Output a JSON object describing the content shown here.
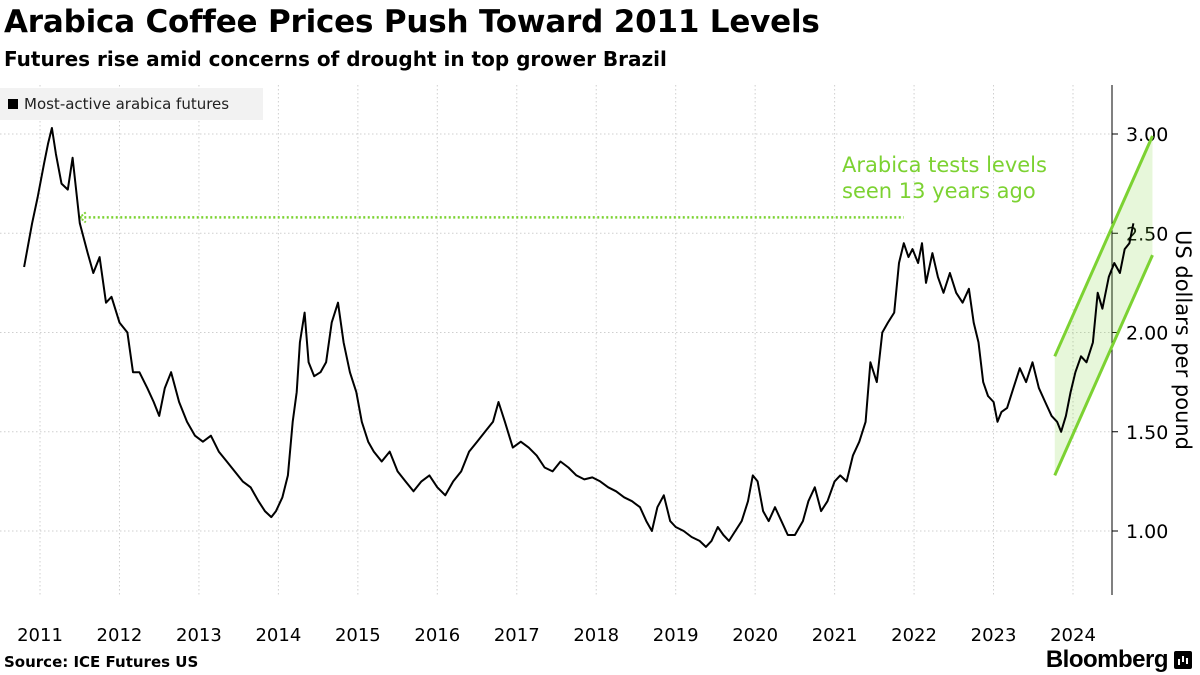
{
  "header": {
    "title": "Arabica Coffee Prices Push Toward 2011 Levels",
    "subtitle": "Futures rise amid concerns of drought in top grower Brazil"
  },
  "footer": {
    "source": "Source: ICE Futures US",
    "brand": "Bloomberg"
  },
  "chart_data": {
    "type": "line",
    "title": "Arabica Coffee Prices Push Toward 2011 Levels",
    "subtitle": "Futures rise amid concerns of drought in top grower Brazil",
    "xlabel": "",
    "ylabel": "US dollars per pound",
    "x_ticks": [
      "2011",
      "2012",
      "2013",
      "2014",
      "2015",
      "2016",
      "2017",
      "2018",
      "2019",
      "2020",
      "2021",
      "2022",
      "2023",
      "2024"
    ],
    "y_ticks": [
      1.0,
      1.5,
      2.0,
      2.5,
      3.0
    ],
    "y_tick_labels": [
      "1.00",
      "1.50",
      "2.00",
      "2.50",
      "3.00"
    ],
    "ylim": [
      0.68,
      3.25
    ],
    "xlim": [
      2010.75,
      2024.72
    ],
    "grid": true,
    "legend": "top-left",
    "series": [
      {
        "name": "Most-active arabica futures",
        "color": "#000000",
        "points": [
          [
            2010.75,
            2.33
          ],
          [
            2010.85,
            2.55
          ],
          [
            2010.92,
            2.68
          ],
          [
            2011.0,
            2.85
          ],
          [
            2011.05,
            2.95
          ],
          [
            2011.1,
            3.03
          ],
          [
            2011.15,
            2.9
          ],
          [
            2011.22,
            2.75
          ],
          [
            2011.3,
            2.72
          ],
          [
            2011.36,
            2.88
          ],
          [
            2011.45,
            2.55
          ],
          [
            2011.55,
            2.4
          ],
          [
            2011.62,
            2.3
          ],
          [
            2011.7,
            2.38
          ],
          [
            2011.78,
            2.15
          ],
          [
            2011.85,
            2.18
          ],
          [
            2011.95,
            2.05
          ],
          [
            2012.05,
            2.0
          ],
          [
            2012.12,
            1.8
          ],
          [
            2012.2,
            1.8
          ],
          [
            2012.3,
            1.72
          ],
          [
            2012.38,
            1.65
          ],
          [
            2012.45,
            1.58
          ],
          [
            2012.52,
            1.72
          ],
          [
            2012.6,
            1.8
          ],
          [
            2012.7,
            1.65
          ],
          [
            2012.8,
            1.55
          ],
          [
            2012.9,
            1.48
          ],
          [
            2013.0,
            1.45
          ],
          [
            2013.1,
            1.48
          ],
          [
            2013.2,
            1.4
          ],
          [
            2013.3,
            1.35
          ],
          [
            2013.4,
            1.3
          ],
          [
            2013.5,
            1.25
          ],
          [
            2013.6,
            1.22
          ],
          [
            2013.7,
            1.15
          ],
          [
            2013.78,
            1.1
          ],
          [
            2013.86,
            1.07
          ],
          [
            2013.92,
            1.1
          ],
          [
            2014.0,
            1.17
          ],
          [
            2014.07,
            1.28
          ],
          [
            2014.13,
            1.55
          ],
          [
            2014.18,
            1.7
          ],
          [
            2014.22,
            1.95
          ],
          [
            2014.28,
            2.1
          ],
          [
            2014.33,
            1.85
          ],
          [
            2014.4,
            1.78
          ],
          [
            2014.48,
            1.8
          ],
          [
            2014.55,
            1.85
          ],
          [
            2014.62,
            2.05
          ],
          [
            2014.7,
            2.15
          ],
          [
            2014.77,
            1.95
          ],
          [
            2014.85,
            1.8
          ],
          [
            2014.93,
            1.7
          ],
          [
            2015.0,
            1.55
          ],
          [
            2015.08,
            1.45
          ],
          [
            2015.15,
            1.4
          ],
          [
            2015.25,
            1.35
          ],
          [
            2015.35,
            1.4
          ],
          [
            2015.45,
            1.3
          ],
          [
            2015.55,
            1.25
          ],
          [
            2015.65,
            1.2
          ],
          [
            2015.75,
            1.25
          ],
          [
            2015.85,
            1.28
          ],
          [
            2015.95,
            1.22
          ],
          [
            2016.05,
            1.18
          ],
          [
            2016.15,
            1.25
          ],
          [
            2016.25,
            1.3
          ],
          [
            2016.35,
            1.4
          ],
          [
            2016.45,
            1.45
          ],
          [
            2016.55,
            1.5
          ],
          [
            2016.65,
            1.55
          ],
          [
            2016.72,
            1.65
          ],
          [
            2016.8,
            1.55
          ],
          [
            2016.9,
            1.42
          ],
          [
            2017.0,
            1.45
          ],
          [
            2017.1,
            1.42
          ],
          [
            2017.2,
            1.38
          ],
          [
            2017.3,
            1.32
          ],
          [
            2017.4,
            1.3
          ],
          [
            2017.5,
            1.35
          ],
          [
            2017.6,
            1.32
          ],
          [
            2017.7,
            1.28
          ],
          [
            2017.8,
            1.26
          ],
          [
            2017.9,
            1.27
          ],
          [
            2018.0,
            1.25
          ],
          [
            2018.1,
            1.22
          ],
          [
            2018.2,
            1.2
          ],
          [
            2018.3,
            1.17
          ],
          [
            2018.4,
            1.15
          ],
          [
            2018.5,
            1.12
          ],
          [
            2018.58,
            1.05
          ],
          [
            2018.65,
            1.0
          ],
          [
            2018.72,
            1.12
          ],
          [
            2018.8,
            1.18
          ],
          [
            2018.88,
            1.05
          ],
          [
            2018.95,
            1.02
          ],
          [
            2019.05,
            1.0
          ],
          [
            2019.15,
            0.97
          ],
          [
            2019.25,
            0.95
          ],
          [
            2019.33,
            0.92
          ],
          [
            2019.4,
            0.95
          ],
          [
            2019.48,
            1.02
          ],
          [
            2019.55,
            0.98
          ],
          [
            2019.62,
            0.95
          ],
          [
            2019.7,
            1.0
          ],
          [
            2019.78,
            1.05
          ],
          [
            2019.86,
            1.15
          ],
          [
            2019.92,
            1.28
          ],
          [
            2019.98,
            1.25
          ],
          [
            2020.05,
            1.1
          ],
          [
            2020.12,
            1.05
          ],
          [
            2020.2,
            1.12
          ],
          [
            2020.28,
            1.05
          ],
          [
            2020.36,
            0.98
          ],
          [
            2020.45,
            0.98
          ],
          [
            2020.55,
            1.05
          ],
          [
            2020.62,
            1.15
          ],
          [
            2020.7,
            1.22
          ],
          [
            2020.78,
            1.1
          ],
          [
            2020.86,
            1.15
          ],
          [
            2020.95,
            1.25
          ],
          [
            2021.02,
            1.28
          ],
          [
            2021.1,
            1.25
          ],
          [
            2021.18,
            1.38
          ],
          [
            2021.26,
            1.45
          ],
          [
            2021.34,
            1.55
          ],
          [
            2021.4,
            1.85
          ],
          [
            2021.48,
            1.75
          ],
          [
            2021.55,
            2.0
          ],
          [
            2021.62,
            2.05
          ],
          [
            2021.7,
            2.1
          ],
          [
            2021.76,
            2.35
          ],
          [
            2021.82,
            2.45
          ],
          [
            2021.88,
            2.38
          ],
          [
            2021.93,
            2.42
          ],
          [
            2022.0,
            2.35
          ],
          [
            2022.05,
            2.45
          ],
          [
            2022.1,
            2.25
          ],
          [
            2022.18,
            2.4
          ],
          [
            2022.25,
            2.28
          ],
          [
            2022.32,
            2.2
          ],
          [
            2022.4,
            2.3
          ],
          [
            2022.48,
            2.2
          ],
          [
            2022.56,
            2.15
          ],
          [
            2022.64,
            2.22
          ],
          [
            2022.7,
            2.05
          ],
          [
            2022.76,
            1.95
          ],
          [
            2022.82,
            1.75
          ],
          [
            2022.88,
            1.68
          ],
          [
            2022.95,
            1.65
          ],
          [
            2023.0,
            1.55
          ],
          [
            2023.05,
            1.6
          ],
          [
            2023.12,
            1.62
          ],
          [
            2023.2,
            1.72
          ],
          [
            2023.28,
            1.82
          ],
          [
            2023.36,
            1.75
          ],
          [
            2023.44,
            1.85
          ],
          [
            2023.52,
            1.72
          ],
          [
            2023.6,
            1.65
          ],
          [
            2023.68,
            1.58
          ],
          [
            2023.75,
            1.55
          ],
          [
            2023.8,
            1.5
          ],
          [
            2023.86,
            1.58
          ],
          [
            2023.92,
            1.7
          ],
          [
            2023.98,
            1.8
          ],
          [
            2024.05,
            1.88
          ],
          [
            2024.12,
            1.85
          ],
          [
            2024.2,
            1.95
          ],
          [
            2024.26,
            2.2
          ],
          [
            2024.32,
            2.12
          ],
          [
            2024.4,
            2.28
          ],
          [
            2024.47,
            2.35
          ],
          [
            2024.54,
            2.3
          ],
          [
            2024.6,
            2.42
          ],
          [
            2024.66,
            2.45
          ],
          [
            2024.71,
            2.55
          ]
        ]
      }
    ],
    "annotations": {
      "text_line1": "Arabica tests levels",
      "text_line2": "seen 13 years ago",
      "color": "#7cd232",
      "reference_level": 2.58,
      "reference_from_x": 2011.45,
      "reference_to_x": 2021.82,
      "channel": {
        "x_start": 2023.72,
        "x_end": 2024.95,
        "upper_start": 1.88,
        "upper_end": 2.99,
        "lower_start": 1.28,
        "lower_end": 2.39
      }
    }
  }
}
